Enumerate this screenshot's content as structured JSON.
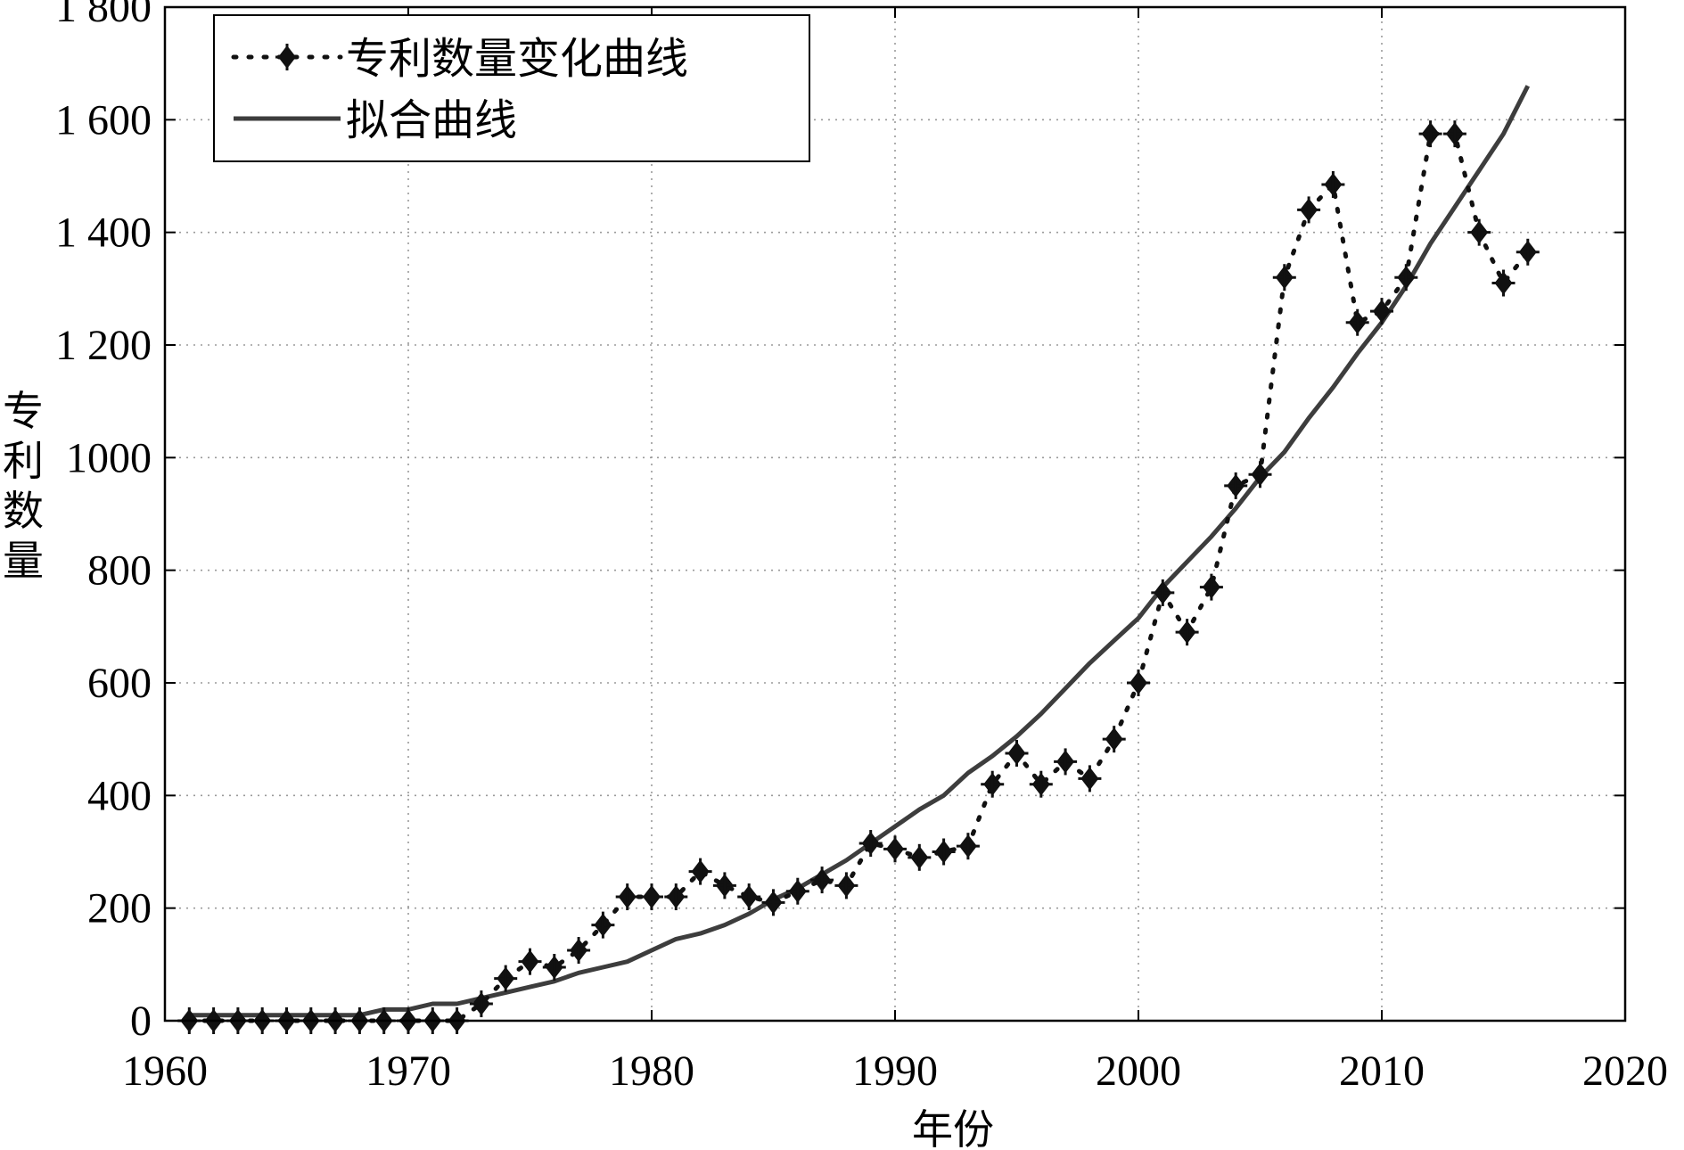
{
  "chart_data": {
    "type": "line",
    "xlabel": "年份",
    "ylabel": "专利数量",
    "xlim": [
      1960,
      2020
    ],
    "ylim": [
      0,
      1800
    ],
    "x_ticks": [
      1960,
      1970,
      1980,
      1990,
      2000,
      2010,
      2020
    ],
    "x_tick_labels": [
      "1960",
      "1970",
      "1980",
      "1990",
      "2000",
      "2010",
      "2020"
    ],
    "y_ticks": [
      0,
      200,
      400,
      600,
      800,
      1000,
      1200,
      1400,
      1600,
      1800
    ],
    "y_tick_labels": [
      "0",
      "200",
      "400",
      "600",
      "800",
      "1000",
      "1 200",
      "1 400",
      "1 600",
      "1 800"
    ],
    "grid": true,
    "legend_position": "top-left",
    "series": [
      {
        "name": "专利数量变化曲线",
        "style": "dotted-with-markers",
        "color": "#111111",
        "x": [
          1961,
          1962,
          1963,
          1964,
          1965,
          1966,
          1967,
          1968,
          1969,
          1970,
          1971,
          1972,
          1973,
          1974,
          1975,
          1976,
          1977,
          1978,
          1979,
          1980,
          1981,
          1982,
          1983,
          1984,
          1985,
          1986,
          1987,
          1988,
          1989,
          1990,
          1991,
          1992,
          1993,
          1994,
          1995,
          1996,
          1997,
          1998,
          1999,
          2000,
          2001,
          2002,
          2003,
          2004,
          2005,
          2006,
          2007,
          2008,
          2009,
          2010,
          2011,
          2012,
          2013,
          2014,
          2015,
          2016
        ],
        "y": [
          0,
          0,
          0,
          0,
          0,
          0,
          0,
          0,
          0,
          0,
          0,
          0,
          30,
          75,
          105,
          95,
          125,
          170,
          220,
          220,
          220,
          265,
          240,
          220,
          210,
          230,
          250,
          240,
          315,
          305,
          290,
          300,
          310,
          420,
          475,
          420,
          460,
          430,
          500,
          600,
          760,
          690,
          770,
          950,
          970,
          1320,
          1440,
          1485,
          1240,
          1260,
          1320,
          1575,
          1575,
          1400,
          1310,
          1365
        ]
      },
      {
        "name": "拟合曲线",
        "style": "solid",
        "color": "#3d3d3d",
        "x": [
          1961,
          1962,
          1963,
          1964,
          1965,
          1966,
          1967,
          1968,
          1969,
          1970,
          1971,
          1972,
          1973,
          1974,
          1975,
          1976,
          1977,
          1978,
          1979,
          1980,
          1981,
          1982,
          1983,
          1984,
          1985,
          1986,
          1987,
          1988,
          1989,
          1990,
          1991,
          1992,
          1993,
          1994,
          1995,
          1996,
          1997,
          1998,
          1999,
          2000,
          2001,
          2002,
          2003,
          2004,
          2005,
          2006,
          2007,
          2008,
          2009,
          2010,
          2011,
          2012,
          2013,
          2014,
          2015,
          2016
        ],
        "y": [
          10,
          10,
          10,
          10,
          10,
          10,
          10,
          10,
          20,
          20,
          30,
          30,
          40,
          50,
          60,
          70,
          85,
          95,
          105,
          125,
          145,
          155,
          170,
          190,
          215,
          235,
          260,
          285,
          315,
          345,
          375,
          400,
          440,
          470,
          505,
          545,
          590,
          635,
          675,
          715,
          770,
          815,
          860,
          910,
          965,
          1010,
          1070,
          1125,
          1185,
          1240,
          1305,
          1380,
          1445,
          1510,
          1575,
          1660
        ]
      }
    ]
  }
}
